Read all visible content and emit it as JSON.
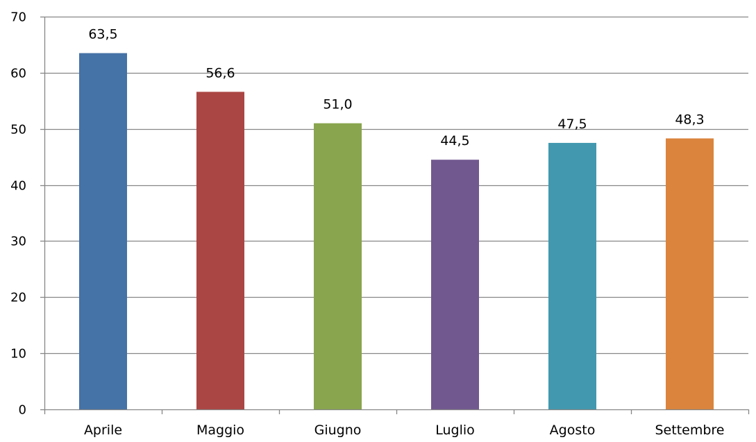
{
  "chart_data": {
    "type": "bar",
    "categories": [
      "Aprile",
      "Maggio",
      "Giugno",
      "Luglio",
      "Agosto",
      "Settembre"
    ],
    "values": [
      63.5,
      56.6,
      51.0,
      44.5,
      47.5,
      48.3
    ],
    "data_labels": [
      "63,5",
      "56,6",
      "51,0",
      "44,5",
      "47,5",
      "48,3"
    ],
    "colors": [
      "#4572a7",
      "#aa4643",
      "#89a54e",
      "#71588f",
      "#4198af",
      "#db843d"
    ],
    "title": "",
    "xlabel": "",
    "ylabel": "",
    "ylim": [
      0,
      70
    ],
    "yticks": [
      0,
      10,
      20,
      30,
      40,
      50,
      60,
      70
    ],
    "grid": true,
    "legend": "none"
  }
}
